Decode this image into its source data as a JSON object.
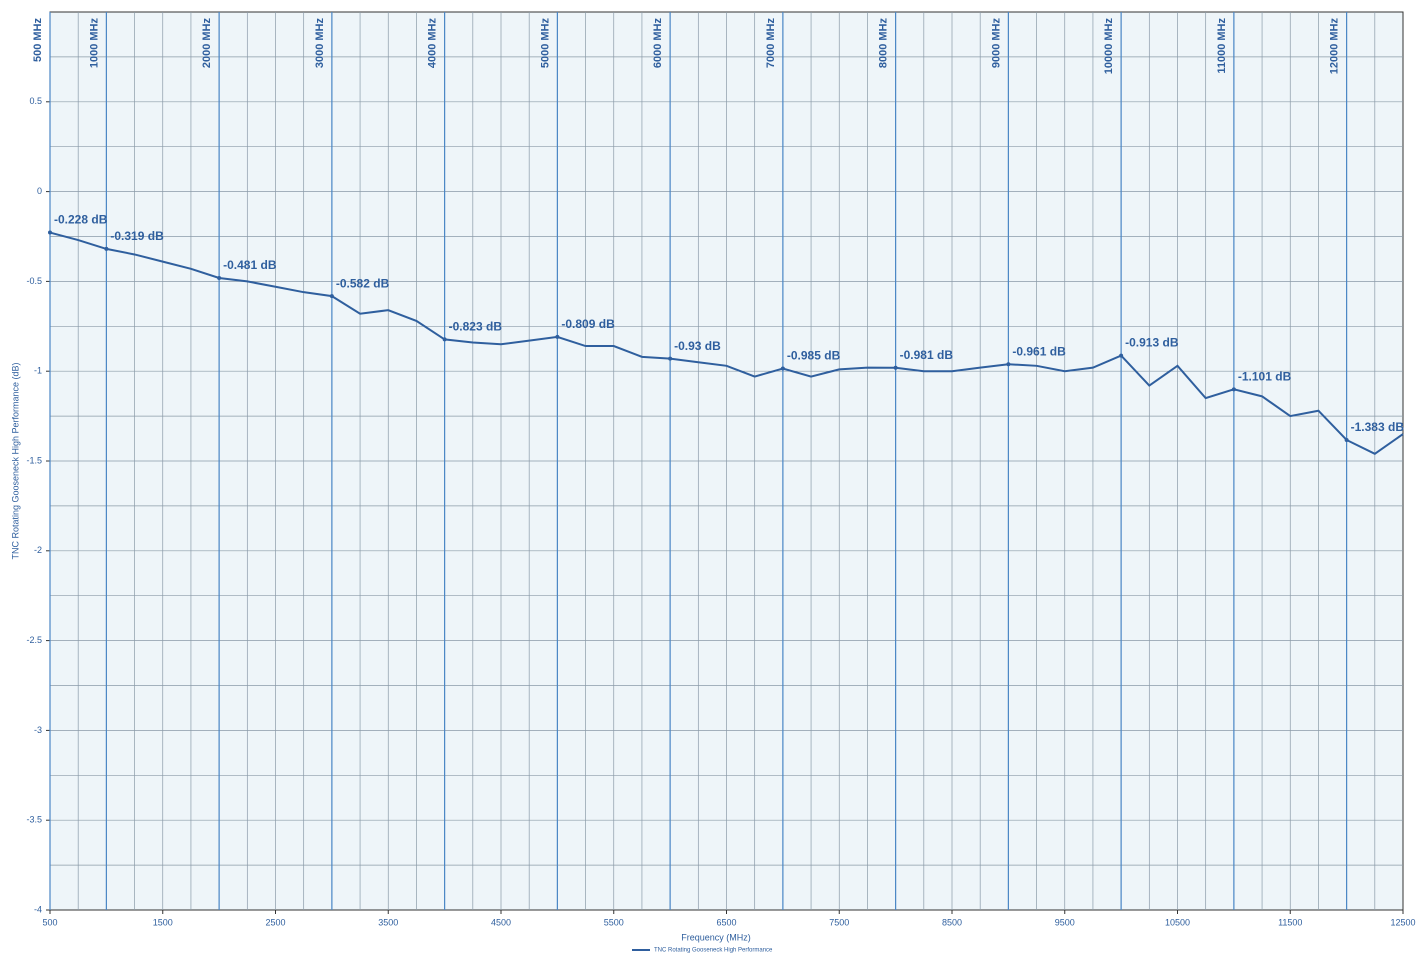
{
  "chart_data": {
    "type": "line",
    "ylabel": "TNC Rotating Gooseneck High Performance (dB)",
    "xlabel": "Frequency (MHz)",
    "xlim": [
      500,
      12500
    ],
    "ylim": [
      -4,
      1
    ],
    "xticks": [
      500,
      1500,
      2500,
      3500,
      4500,
      5500,
      6500,
      7500,
      8500,
      9500,
      10500,
      11500,
      12500
    ],
    "yticks": [
      0.5,
      0,
      -0.5,
      -1,
      -1.5,
      -2,
      -2.5,
      -3,
      -3.5,
      -4
    ],
    "grid": true,
    "xgrid_step": 250,
    "ygrid_step": 0.25,
    "legend": "bottom",
    "series": [
      {
        "name": "TNC Rotating Gooseneck High Performance",
        "color": "#2f5f9e",
        "x": [
          500,
          750,
          1000,
          1250,
          1500,
          1750,
          2000,
          2250,
          2500,
          2750,
          3000,
          3250,
          3500,
          3750,
          4000,
          4250,
          4500,
          4750,
          5000,
          5250,
          5500,
          5750,
          6000,
          6250,
          6500,
          6750,
          7000,
          7250,
          7500,
          7750,
          8000,
          8250,
          8500,
          8750,
          9000,
          9250,
          9500,
          9750,
          10000,
          10250,
          10500,
          10750,
          11000,
          11250,
          11500,
          11750,
          12000,
          12250,
          12500
        ],
        "values": [
          -0.228,
          -0.27,
          -0.319,
          -0.35,
          -0.39,
          -0.43,
          -0.481,
          -0.5,
          -0.53,
          -0.56,
          -0.582,
          -0.68,
          -0.66,
          -0.72,
          -0.823,
          -0.84,
          -0.85,
          -0.83,
          -0.809,
          -0.86,
          -0.86,
          -0.92,
          -0.93,
          -0.95,
          -0.97,
          -1.03,
          -0.985,
          -1.03,
          -0.99,
          -0.98,
          -0.981,
          -1.0,
          -1.0,
          -0.98,
          -0.961,
          -0.97,
          -1.0,
          -0.98,
          -0.913,
          -1.08,
          -0.97,
          -1.15,
          -1.101,
          -1.14,
          -1.25,
          -1.22,
          -1.383,
          -1.46,
          -1.35
        ]
      }
    ],
    "markers": [
      {
        "x": 500,
        "label": "500 MHz",
        "value": -0.228,
        "value_label": "-0.228 dB"
      },
      {
        "x": 1000,
        "label": "1000 MHz",
        "value": -0.319,
        "value_label": "-0.319 dB"
      },
      {
        "x": 2000,
        "label": "2000 MHz",
        "value": -0.481,
        "value_label": "-0.481 dB"
      },
      {
        "x": 3000,
        "label": "3000 MHz",
        "value": -0.582,
        "value_label": "-0.582 dB"
      },
      {
        "x": 4000,
        "label": "4000 MHz",
        "value": -0.823,
        "value_label": "-0.823 dB"
      },
      {
        "x": 5000,
        "label": "5000 MHz",
        "value": -0.809,
        "value_label": "-0.809 dB"
      },
      {
        "x": 6000,
        "label": "6000 MHz",
        "value": -0.93,
        "value_label": "-0.93 dB"
      },
      {
        "x": 7000,
        "label": "7000 MHz",
        "value": -0.985,
        "value_label": "-0.985 dB"
      },
      {
        "x": 8000,
        "label": "8000 MHz",
        "value": -0.981,
        "value_label": "-0.981 dB"
      },
      {
        "x": 9000,
        "label": "9000 MHz",
        "value": -0.961,
        "value_label": "-0.961 dB"
      },
      {
        "x": 10000,
        "label": "10000 MHz",
        "value": -0.913,
        "value_label": "-0.913 dB"
      },
      {
        "x": 11000,
        "label": "11000 MHz",
        "value": -1.101,
        "value_label": "-1.101 dB"
      },
      {
        "x": 12000,
        "label": "12000 MHz",
        "value": -1.383,
        "value_label": "-1.383 dB"
      }
    ]
  }
}
